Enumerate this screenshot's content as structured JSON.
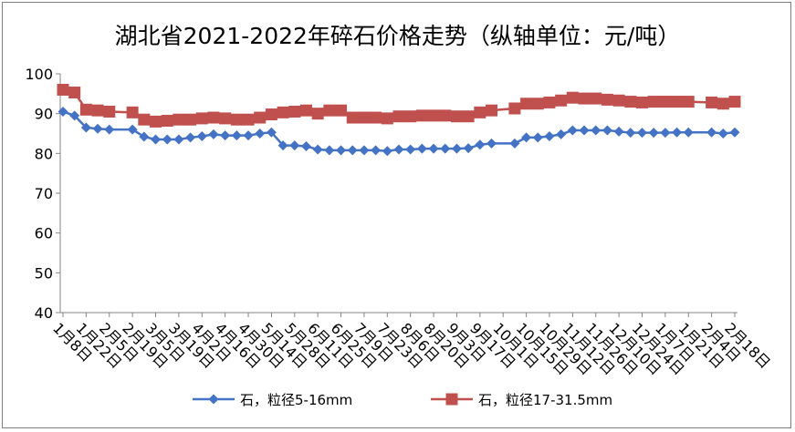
{
  "chart_data": {
    "type": "line",
    "title": "湖北省2021-2022年碎石价格走势（纵轴单位：元/吨）",
    "ylim": [
      40,
      100
    ],
    "yticks": [
      40,
      50,
      60,
      70,
      80,
      90,
      100
    ],
    "grid": false,
    "legend_position": "bottom",
    "x_tick_labels": [
      "1月8日",
      "1月22日",
      "2月5日",
      "2月19日",
      "3月5日",
      "3月19日",
      "4月2日",
      "4月16日",
      "4月30日",
      "5月14日",
      "5月28日",
      "6月11日",
      "6月25日",
      "7月9日",
      "7月23日",
      "8月6日",
      "8月20日",
      "9月3日",
      "9月17日",
      "10月1日",
      "10月15日",
      "10月29日",
      "11月12日",
      "11月26日",
      "12月10日",
      "12月24日",
      "1月7日",
      "1月21日",
      "2月4日",
      "2月18日"
    ],
    "series": [
      {
        "name": "石，粒径5-16mm",
        "color": "#4472C4",
        "marker": "diamond",
        "points": [
          [
            0,
            90.5
          ],
          [
            0.5,
            89.5
          ],
          [
            1,
            86.5
          ],
          [
            1.5,
            86.2
          ],
          [
            2,
            86.0
          ],
          [
            3,
            86.0
          ],
          [
            3.5,
            84.2
          ],
          [
            4,
            83.5
          ],
          [
            4.5,
            83.5
          ],
          [
            5,
            83.5
          ],
          [
            5.5,
            84.0
          ],
          [
            6,
            84.3
          ],
          [
            6.5,
            84.8
          ],
          [
            7,
            84.5
          ],
          [
            7.5,
            84.5
          ],
          [
            8,
            84.5
          ],
          [
            8.5,
            85.0
          ],
          [
            9,
            85.3
          ],
          [
            9.5,
            82.0
          ],
          [
            10,
            82.0
          ],
          [
            10.5,
            81.8
          ],
          [
            11,
            81.0
          ],
          [
            11.5,
            80.8
          ],
          [
            12,
            80.8
          ],
          [
            12.5,
            80.8
          ],
          [
            13,
            80.8
          ],
          [
            13.5,
            80.8
          ],
          [
            14,
            80.6
          ],
          [
            14.5,
            81.0
          ],
          [
            15,
            81.0
          ],
          [
            15.5,
            81.2
          ],
          [
            16,
            81.2
          ],
          [
            16.5,
            81.2
          ],
          [
            17,
            81.2
          ],
          [
            17.5,
            81.3
          ],
          [
            18,
            82.2
          ],
          [
            18.5,
            82.5
          ],
          [
            19.5,
            82.5
          ],
          [
            20,
            84.0
          ],
          [
            20.5,
            84.0
          ],
          [
            21,
            84.3
          ],
          [
            21.5,
            84.8
          ],
          [
            22,
            85.8
          ],
          [
            22.5,
            85.8
          ],
          [
            23,
            85.8
          ],
          [
            23.5,
            85.8
          ],
          [
            24,
            85.5
          ],
          [
            24.5,
            85.2
          ],
          [
            25,
            85.2
          ],
          [
            25.5,
            85.2
          ],
          [
            26,
            85.2
          ],
          [
            26.5,
            85.3
          ],
          [
            27,
            85.3
          ],
          [
            28,
            85.3
          ],
          [
            28.5,
            85.0
          ],
          [
            29,
            85.3
          ]
        ]
      },
      {
        "name": "石，粒径17-31.5mm",
        "color": "#C0504D",
        "marker": "square",
        "points": [
          [
            0,
            96.0
          ],
          [
            0.5,
            95.3
          ],
          [
            1,
            91.0
          ],
          [
            1.5,
            90.8
          ],
          [
            2,
            90.5
          ],
          [
            3,
            90.3
          ],
          [
            3.5,
            88.5
          ],
          [
            4,
            88.0
          ],
          [
            4.5,
            88.2
          ],
          [
            5,
            88.5
          ],
          [
            5.5,
            88.5
          ],
          [
            6,
            88.8
          ],
          [
            6.5,
            89.0
          ],
          [
            7,
            88.8
          ],
          [
            7.5,
            88.5
          ],
          [
            8,
            88.5
          ],
          [
            8.5,
            89.0
          ],
          [
            9,
            89.8
          ],
          [
            9.5,
            90.3
          ],
          [
            10,
            90.5
          ],
          [
            10.5,
            90.8
          ],
          [
            11,
            90.0
          ],
          [
            11.5,
            90.8
          ],
          [
            12,
            90.8
          ],
          [
            12.5,
            89.0
          ],
          [
            13,
            89.0
          ],
          [
            13.5,
            89.0
          ],
          [
            14,
            88.8
          ],
          [
            14.5,
            89.3
          ],
          [
            15,
            89.3
          ],
          [
            15.5,
            89.5
          ],
          [
            16,
            89.5
          ],
          [
            16.5,
            89.5
          ],
          [
            17,
            89.3
          ],
          [
            17.5,
            89.3
          ],
          [
            18,
            90.3
          ],
          [
            18.5,
            90.8
          ],
          [
            19.5,
            91.3
          ],
          [
            20,
            92.5
          ],
          [
            20.5,
            92.5
          ],
          [
            21,
            92.8
          ],
          [
            21.5,
            93.3
          ],
          [
            22,
            94.0
          ],
          [
            22.5,
            93.8
          ],
          [
            23,
            93.8
          ],
          [
            23.5,
            93.5
          ],
          [
            24,
            93.3
          ],
          [
            24.5,
            93.0
          ],
          [
            25,
            92.8
          ],
          [
            25.5,
            93.0
          ],
          [
            26,
            93.0
          ],
          [
            26.5,
            93.0
          ],
          [
            27,
            93.0
          ],
          [
            28,
            92.8
          ],
          [
            28.5,
            92.5
          ],
          [
            29,
            93.0
          ]
        ]
      }
    ]
  }
}
